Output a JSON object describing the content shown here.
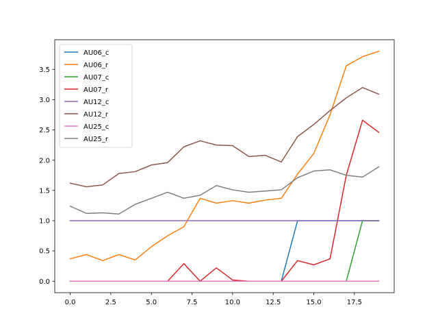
{
  "chart_data": {
    "type": "line",
    "title": "",
    "xlabel": "",
    "ylabel": "",
    "xlim": [
      -0.95,
      19.95
    ],
    "ylim": [
      -0.19,
      3.99
    ],
    "x_ticks": [
      0.0,
      2.5,
      5.0,
      7.5,
      10.0,
      12.5,
      15.0,
      17.5
    ],
    "x_tick_labels": [
      "0.0",
      "2.5",
      "5.0",
      "7.5",
      "10.0",
      "12.5",
      "15.0",
      "17.5"
    ],
    "y_ticks": [
      0.0,
      0.5,
      1.0,
      1.5,
      2.0,
      2.5,
      3.0,
      3.5
    ],
    "y_tick_labels": [
      "0.0",
      "0.5",
      "1.0",
      "1.5",
      "2.0",
      "2.5",
      "3.0",
      "3.5"
    ],
    "grid": false,
    "legend_position": "top-left",
    "x": [
      0,
      1,
      2,
      3,
      4,
      5,
      6,
      7,
      8,
      9,
      10,
      11,
      12,
      13,
      14,
      15,
      16,
      17,
      18,
      19
    ],
    "series": [
      {
        "name": "AU06_c",
        "color": "#1f77b4",
        "values": [
          0,
          0,
          0,
          0,
          0,
          0,
          0,
          0,
          0,
          0,
          0,
          0,
          0,
          0,
          1,
          1,
          1,
          1,
          1,
          1
        ]
      },
      {
        "name": "AU06_r",
        "color": "#ff7f0e",
        "values": [
          0.37,
          0.44,
          0.34,
          0.44,
          0.35,
          0.57,
          0.75,
          0.9,
          1.37,
          1.29,
          1.33,
          1.29,
          1.34,
          1.37,
          1.77,
          2.11,
          2.75,
          3.56,
          3.71,
          3.8
        ]
      },
      {
        "name": "AU07_c",
        "color": "#2ca02c",
        "values": [
          0,
          0,
          0,
          0,
          0,
          0,
          0,
          0,
          0,
          0,
          0,
          0,
          0,
          0,
          0,
          0,
          0,
          0,
          1,
          1
        ]
      },
      {
        "name": "AU07_r",
        "color": "#d62728",
        "values": [
          0,
          0,
          0,
          0,
          0,
          0,
          0,
          0.29,
          0,
          0.22,
          0.02,
          0,
          0,
          0,
          0.34,
          0.27,
          0.37,
          1.75,
          2.66,
          2.46
        ]
      },
      {
        "name": "AU12_c",
        "color": "#9467bd",
        "values": [
          1,
          1,
          1,
          1,
          1,
          1,
          1,
          1,
          1,
          1,
          1,
          1,
          1,
          1,
          1,
          1,
          1,
          1,
          1,
          1
        ]
      },
      {
        "name": "AU12_r",
        "color": "#8c564b",
        "values": [
          1.62,
          1.56,
          1.59,
          1.78,
          1.81,
          1.92,
          1.96,
          2.22,
          2.32,
          2.25,
          2.24,
          2.06,
          2.08,
          1.97,
          2.39,
          2.59,
          2.82,
          3.03,
          3.2,
          3.09
        ]
      },
      {
        "name": "AU25_c",
        "color": "#e377c2",
        "values": [
          0,
          0,
          0,
          0,
          0,
          0,
          0,
          0,
          0,
          0,
          0,
          0,
          0,
          0,
          0,
          0,
          0,
          0,
          0,
          0
        ]
      },
      {
        "name": "AU25_r",
        "color": "#7f7f7f",
        "values": [
          1.24,
          1.12,
          1.13,
          1.11,
          1.27,
          1.37,
          1.47,
          1.37,
          1.42,
          1.58,
          1.51,
          1.47,
          1.49,
          1.51,
          1.71,
          1.82,
          1.84,
          1.75,
          1.72,
          1.89
        ]
      }
    ]
  }
}
